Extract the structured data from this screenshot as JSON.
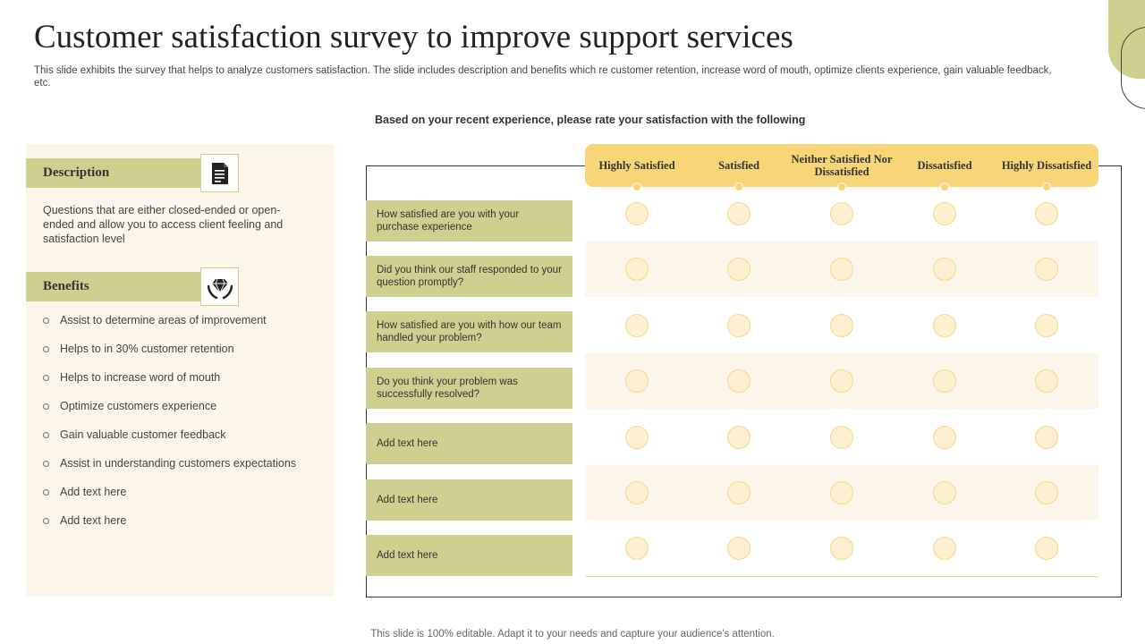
{
  "title": "Customer satisfaction survey to improve support services",
  "subtitle": "This slide exhibits the survey that helps to analyze customers satisfaction. The slide includes description and benefits which re customer retention, increase word of mouth, optimize clients experience, gain valuable feedback, etc.",
  "description": {
    "heading": "Description",
    "icon": "document-icon",
    "text": "Questions that are either closed-ended or open-ended and allow you to access client feeling and satisfaction level"
  },
  "benefits": {
    "heading": "Benefits",
    "icon": "diamond-in-hands-icon",
    "items": [
      "Assist to determine areas of improvement",
      "Helps to in 30% customer retention",
      "Helps to increase word of mouth",
      "Optimize customers experience",
      "Gain valuable customer feedback",
      "Assist in understanding customers expectations",
      "Add text here",
      "Add text here"
    ]
  },
  "survey": {
    "prompt": "Based on your recent experience, please rate your satisfaction with the following",
    "columns": [
      "Highly Satisfied",
      "Satisfied",
      "Neither Satisfied Nor Dissatisfied",
      "Dissatisfied",
      "Highly Dissatisfied"
    ],
    "questions": [
      "How satisfied are you with your purchase experience",
      "Did you think our staff responded to your question promptly?",
      "How satisfied are you with how our team handled your problem?",
      "Do you think your problem was successfully resolved?",
      "Add text here",
      "Add text here",
      "Add text here"
    ]
  },
  "footer": "This slide is 100% editable. Adapt it to your needs and capture your audience's attention.",
  "colors": {
    "accent_olive": "#cfcf90",
    "accent_yellow": "#f9d57a",
    "panel_bg": "#fbf5ea",
    "radio_fill": "#fdefcf"
  }
}
